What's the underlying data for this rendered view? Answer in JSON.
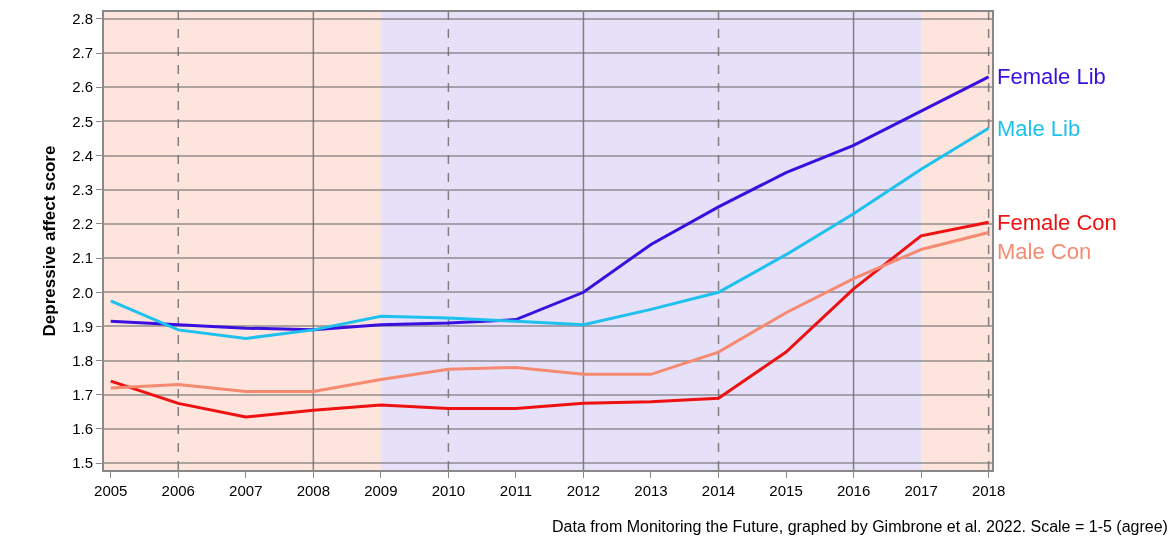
{
  "chart_data": {
    "type": "line",
    "ylabel": "Depressive affect score",
    "x": [
      2005,
      2006,
      2007,
      2008,
      2009,
      2010,
      2011,
      2012,
      2013,
      2014,
      2015,
      2016,
      2017,
      2018
    ],
    "series": [
      {
        "name": "Female Lib",
        "color": "#3a10e0",
        "values": [
          1.915,
          1.905,
          1.895,
          1.89,
          1.905,
          1.91,
          1.92,
          2.0,
          2.14,
          2.25,
          2.35,
          2.43,
          2.53,
          2.63
        ]
      },
      {
        "name": "Male Lib",
        "color": "#1ec0ee",
        "values": [
          1.975,
          1.89,
          1.865,
          1.89,
          1.93,
          1.925,
          1.915,
          1.905,
          1.95,
          2.0,
          2.11,
          2.23,
          2.36,
          2.48
        ]
      },
      {
        "name": "Female Con",
        "color": "#ee1111",
        "values": [
          1.74,
          1.675,
          1.635,
          1.655,
          1.67,
          1.66,
          1.66,
          1.675,
          1.68,
          1.69,
          1.825,
          2.01,
          2.165,
          2.205
        ]
      },
      {
        "name": "Male Con",
        "color": "#f58a70",
        "values": [
          1.72,
          1.73,
          1.71,
          1.71,
          1.745,
          1.775,
          1.78,
          1.76,
          1.76,
          1.825,
          1.94,
          2.04,
          2.125,
          2.175
        ]
      }
    ],
    "xlim": [
      2004.9,
      2018.05
    ],
    "xticks": [
      2005,
      2006,
      2007,
      2008,
      2009,
      2010,
      2011,
      2012,
      2013,
      2014,
      2015,
      2016,
      2017,
      2018
    ],
    "ylim": [
      1.48,
      2.82
    ],
    "yticks": [
      1.5,
      1.6,
      1.7,
      1.8,
      1.9,
      {
        "value": 2,
        "label": "2.0"
      },
      2.1,
      2.2,
      2.3,
      2.4,
      2.5,
      2.6,
      2.7,
      2.8
    ],
    "grid": "y",
    "legend": false,
    "marker": "none",
    "line_style": "solid",
    "bands": [
      {
        "axis": "x",
        "from": 2004.9,
        "to": 2009,
        "color": "#fde4dc"
      },
      {
        "axis": "x",
        "from": 2009,
        "to": 2017,
        "color": "#e6e1f8"
      },
      {
        "axis": "x",
        "from": 2017,
        "to": 2018.05,
        "color": "#fde4dc"
      }
    ],
    "ref_lines": [
      {
        "axis": "x",
        "value": 2006,
        "color": "#808080",
        "line_style": "dashed"
      },
      {
        "axis": "x",
        "value": 2008,
        "color": "#808080",
        "line_style": "solid"
      },
      {
        "axis": "x",
        "value": 2010,
        "color": "#808080",
        "line_style": "dashed"
      },
      {
        "axis": "x",
        "value": 2012,
        "color": "#808080",
        "line_style": "solid"
      },
      {
        "axis": "x",
        "value": 2014,
        "color": "#808080",
        "line_style": "dashed"
      },
      {
        "axis": "x",
        "value": 2016,
        "color": "#808080",
        "line_style": "solid"
      },
      {
        "axis": "x",
        "value": 2018,
        "color": "#808080",
        "line_style": "dashed"
      }
    ],
    "annotations": [
      "Data from Monitoring the Future, graphed by Gimbrone et al. 2022. Scale = 1-5 (agree)"
    ]
  }
}
